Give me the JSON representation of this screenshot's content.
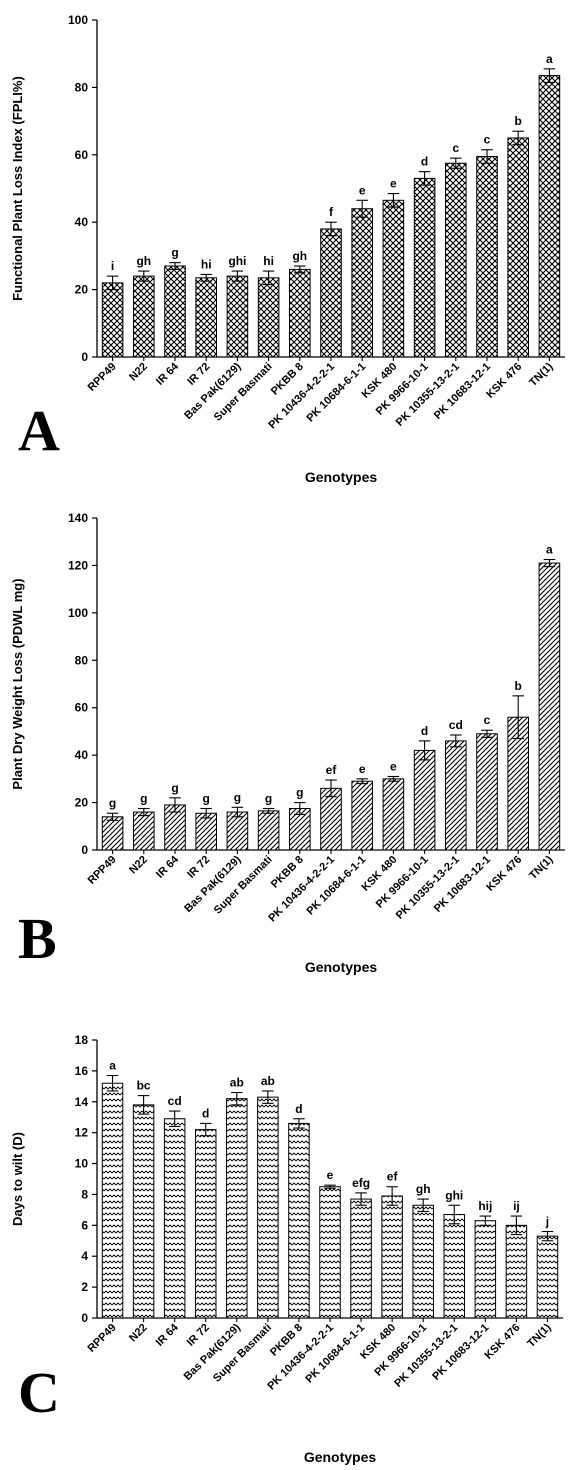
{
  "chart_data": [
    {
      "type": "bar",
      "panel_label": "A",
      "categories": [
        "RPP49",
        "N22",
        "IR 64",
        "IR 72",
        "Bas Pak(6129)",
        "Super Basmati",
        "PKBB 8",
        "PK 10436-4-2-2-1",
        "PK 10684-6-1-1",
        "KSK 480",
        "PK 9966-10-1",
        "PK 10355-13-2-1",
        "PK 10683-12-1",
        "KSK 476",
        "TN(1)"
      ],
      "values": [
        22,
        24,
        27,
        23.5,
        24,
        23.5,
        26,
        38,
        44,
        46.5,
        53,
        57.5,
        59.5,
        65,
        83.5
      ],
      "errors": [
        2,
        1.5,
        1,
        1,
        1.5,
        2,
        1,
        2,
        2.5,
        2,
        2,
        1.5,
        2,
        2,
        2
      ],
      "letters": [
        "i",
        "gh",
        "g",
        "hi",
        "ghi",
        "hi",
        "gh",
        "f",
        "e",
        "e",
        "d",
        "c",
        "c",
        "b",
        "a"
      ],
      "xlabel": "Genotypes",
      "ylabel": "Functional Plant Loss Index (FPLI%)",
      "ylim": [
        0,
        100
      ],
      "yticks": [
        0,
        20,
        40,
        60,
        80,
        100
      ],
      "pattern": "crosshatch"
    },
    {
      "type": "bar",
      "panel_label": "B",
      "categories": [
        "RPP49",
        "N22",
        "IR 64",
        "IR 72",
        "Bas Pak(6129)",
        "Super Basmati",
        "PKBB 8",
        "PK 10436-4-2-2-1",
        "PK 10684-6-1-1",
        "KSK 480",
        "PK 9966-10-1",
        "PK 10355-13-2-1",
        "PK 10683-12-1",
        "KSK 476",
        "TN(1)"
      ],
      "values": [
        14,
        16,
        19,
        15.5,
        16,
        16.5,
        17.5,
        26,
        29,
        30,
        42,
        46,
        49,
        56,
        121
      ],
      "errors": [
        1.5,
        1.5,
        3,
        2,
        2,
        1,
        2.5,
        3.5,
        1,
        1,
        4,
        2.5,
        1.5,
        9,
        1.5
      ],
      "letters": [
        "g",
        "g",
        "g",
        "g",
        "g",
        "g",
        "g",
        "ef",
        "e",
        "e",
        "d",
        "cd",
        "c",
        "b",
        "a"
      ],
      "xlabel": "Genotypes",
      "ylabel": "Plant Dry Weight Loss (PDWL mg)",
      "ylim": [
        0,
        140
      ],
      "yticks": [
        0,
        20,
        40,
        60,
        80,
        100,
        120,
        140
      ],
      "pattern": "diagonal"
    },
    {
      "type": "bar",
      "panel_label": "C",
      "categories": [
        "RPP49",
        "N22",
        "IR 64",
        "IR 72",
        "Bas Pak(6129)",
        "Super Basmati",
        "PKBB 8",
        "PK 10436-4-2-2-1",
        "PK 10684-6-1-1",
        "KSK 480",
        "PK 9966-10-1",
        "PK 10355-13-2-1",
        "PK 10683-12-1",
        "KSK 476",
        "TN(1)"
      ],
      "values": [
        15.2,
        13.8,
        12.9,
        12.2,
        14.2,
        14.3,
        12.6,
        8.5,
        7.7,
        7.9,
        7.3,
        6.7,
        6.3,
        6.0,
        5.3
      ],
      "errors": [
        0.5,
        0.6,
        0.5,
        0.4,
        0.4,
        0.4,
        0.3,
        0.1,
        0.4,
        0.6,
        0.4,
        0.6,
        0.3,
        0.6,
        0.3
      ],
      "letters": [
        "a",
        "bc",
        "cd",
        "d",
        "ab",
        "ab",
        "d",
        "e",
        "efg",
        "ef",
        "gh",
        "ghi",
        "hij",
        "ij",
        "j"
      ],
      "xlabel": "Genotypes",
      "ylabel": "Days to wilt (D)",
      "ylim": [
        0,
        18
      ],
      "yticks": [
        0,
        2,
        4,
        6,
        8,
        10,
        12,
        14,
        16,
        18
      ],
      "pattern": "zigzag"
    }
  ]
}
